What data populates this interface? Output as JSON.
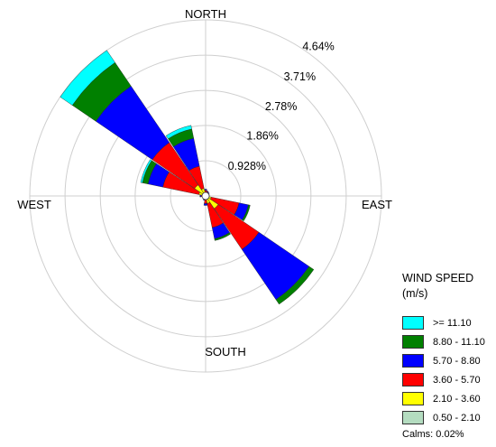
{
  "chart_data": {
    "type": "wind-rose",
    "directions": [
      "N",
      "NNE",
      "NE",
      "ENE",
      "E",
      "ESE",
      "SE",
      "SSE",
      "S",
      "SSW",
      "SW",
      "WSW",
      "W",
      "WNW",
      "NW",
      "NNW"
    ],
    "direction_labels": {
      "north": "NORTH",
      "east": "EAST",
      "south": "SOUTH",
      "west": "WEST"
    },
    "ring_values": [
      0.928,
      1.86,
      2.78,
      3.71,
      4.64
    ],
    "ring_labels": [
      "0.928%",
      "1.86%",
      "2.78%",
      "3.71%",
      "4.64%"
    ],
    "max_percent": 4.64,
    "legend": {
      "title": "WIND SPEED",
      "unit": "(m/s)"
    },
    "bins": [
      {
        "label": ">= 11.10",
        "color": "#00ffff"
      },
      {
        "label": "8.80 - 11.10",
        "color": "#008000"
      },
      {
        "label": "5.70 - 8.80",
        "color": "#0000ff"
      },
      {
        "label": "3.60 - 5.70",
        "color": "#ff0000"
      },
      {
        "label": "2.10 - 3.60",
        "color": "#ffff00"
      },
      {
        "label": "0.50 - 2.10",
        "color": "#b4dcc0"
      }
    ],
    "series_order_inner_to_outer": [
      "0.50 - 2.10",
      "2.10 - 3.60",
      "3.60 - 5.70",
      "5.70 - 8.80",
      "8.80 - 11.10",
      ">= 11.10"
    ],
    "cumulative_percent_by_direction": {
      "N": [
        0.02,
        0.1,
        0.15,
        0.18,
        0.18,
        0.18
      ],
      "NNE": [
        0.02,
        0.08,
        0.12,
        0.14,
        0.14,
        0.14
      ],
      "NE": [
        0.02,
        0.07,
        0.1,
        0.12,
        0.12,
        0.12
      ],
      "ENE": [
        0.02,
        0.06,
        0.08,
        0.1,
        0.1,
        0.1
      ],
      "E": [
        0.02,
        0.05,
        0.08,
        0.1,
        0.1,
        0.1
      ],
      "ESE": [
        0.02,
        0.15,
        0.9,
        1.15,
        1.2,
        1.2
      ],
      "SE": [
        0.03,
        0.4,
        1.7,
        3.3,
        3.45,
        3.45
      ],
      "SSE": [
        0.03,
        0.2,
        0.85,
        1.15,
        1.2,
        1.2
      ],
      "S": [
        0.02,
        0.1,
        0.2,
        0.25,
        0.25,
        0.25
      ],
      "SSW": [
        0.02,
        0.06,
        0.1,
        0.12,
        0.12,
        0.12
      ],
      "SW": [
        0.02,
        0.05,
        0.08,
        0.1,
        0.1,
        0.1
      ],
      "WSW": [
        0.02,
        0.05,
        0.07,
        0.08,
        0.08,
        0.08
      ],
      "W": [
        0.02,
        0.06,
        0.12,
        0.15,
        0.15,
        0.15
      ],
      "WNW": [
        0.02,
        0.18,
        1.15,
        1.55,
        1.7,
        1.75
      ],
      "NW": [
        0.03,
        0.35,
        1.7,
        3.5,
        4.25,
        4.64
      ],
      "NNW": [
        0.02,
        0.2,
        0.8,
        1.55,
        1.8,
        1.9
      ]
    },
    "calms": "Calms: 0.02%"
  }
}
